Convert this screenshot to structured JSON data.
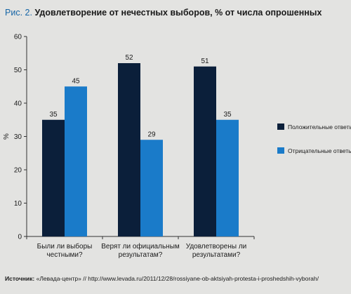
{
  "figure_label": "Рис. 2.",
  "title": "Удовлетворение от нечестных выборов, % от числа опрошенных",
  "source_label": "Источник:",
  "source_text": "«Левада-центр» // http://www.levada.ru/2011/12/28/rossiyane-ob-aktsiyah-protesta-i-proshedshih-vyborah/",
  "chart_data": {
    "type": "bar",
    "title": "Удовлетворение от нечестных выборов, % от числа опрошенных",
    "ylabel": "%",
    "xlabel": "",
    "ylim": [
      0,
      60
    ],
    "yticks": [
      0,
      10,
      20,
      30,
      40,
      50,
      60
    ],
    "grid": false,
    "legend_position": "right",
    "categories": [
      [
        "Были ли выборы",
        "честными?"
      ],
      [
        "Верят ли официальным",
        "результатам?"
      ],
      [
        "Удовлетворены ли",
        "результатами?"
      ]
    ],
    "series": [
      {
        "name": "Положительные ответы",
        "color": "#0b1f3a",
        "values": [
          35,
          52,
          51
        ]
      },
      {
        "name": "Отрицательные ответы",
        "color": "#1a7bc9",
        "values": [
          45,
          29,
          35
        ]
      }
    ]
  }
}
